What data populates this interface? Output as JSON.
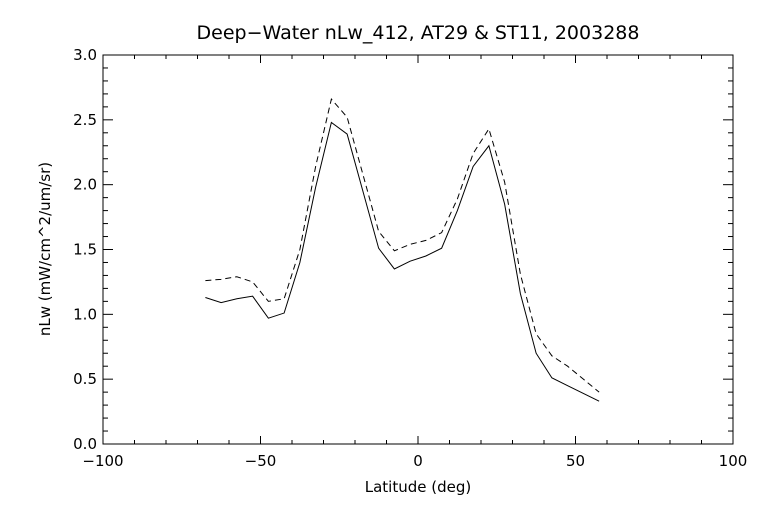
{
  "chart_data": {
    "type": "line",
    "title": "Deep−Water nLw_412, AT29 & ST11, 2003288",
    "xlabel": "Latitude (deg)",
    "ylabel": "nLw (mW/cm^2/um/sr)",
    "xlim": [
      -100,
      100
    ],
    "ylim": [
      0.0,
      3.0
    ],
    "x_ticks": [
      -100,
      -50,
      0,
      50,
      100
    ],
    "x_tick_labels": [
      "−100",
      "−50",
      "0",
      "50",
      "100"
    ],
    "y_ticks": [
      0.0,
      0.5,
      1.0,
      1.5,
      2.0,
      2.5,
      3.0
    ],
    "y_tick_labels": [
      "0.0",
      "0.5",
      "1.0",
      "1.5",
      "2.0",
      "2.5",
      "3.0"
    ],
    "grid": false,
    "legend": "none",
    "series": [
      {
        "style": "solid",
        "points": [
          [
            -67.5,
            1.13
          ],
          [
            -62.5,
            1.09
          ],
          [
            -57.5,
            1.12
          ],
          [
            -52.5,
            1.14
          ],
          [
            -47.5,
            0.97
          ],
          [
            -42.5,
            1.01
          ],
          [
            -37.5,
            1.4
          ],
          [
            -32.5,
            1.98
          ],
          [
            -27.5,
            2.48
          ],
          [
            -22.5,
            2.39
          ],
          [
            -17.5,
            1.95
          ],
          [
            -12.5,
            1.51
          ],
          [
            -7.5,
            1.35
          ],
          [
            -2.5,
            1.41
          ],
          [
            2.5,
            1.45
          ],
          [
            7.5,
            1.51
          ],
          [
            12.5,
            1.8
          ],
          [
            17.5,
            2.14
          ],
          [
            22.5,
            2.3
          ],
          [
            27.5,
            1.85
          ],
          [
            32.5,
            1.16
          ],
          [
            37.5,
            0.7
          ],
          [
            42.5,
            0.51
          ],
          [
            47.5,
            0.45
          ],
          [
            52.5,
            0.39
          ],
          [
            57.5,
            0.33
          ]
        ]
      },
      {
        "style": "dashed",
        "points": [
          [
            -67.5,
            1.26
          ],
          [
            -62.5,
            1.27
          ],
          [
            -57.5,
            1.29
          ],
          [
            -52.5,
            1.25
          ],
          [
            -47.5,
            1.1
          ],
          [
            -42.5,
            1.12
          ],
          [
            -37.5,
            1.5
          ],
          [
            -32.5,
            2.14
          ],
          [
            -27.5,
            2.66
          ],
          [
            -22.5,
            2.52
          ],
          [
            -17.5,
            2.08
          ],
          [
            -12.5,
            1.64
          ],
          [
            -7.5,
            1.49
          ],
          [
            -2.5,
            1.54
          ],
          [
            2.5,
            1.57
          ],
          [
            7.5,
            1.63
          ],
          [
            12.5,
            1.89
          ],
          [
            17.5,
            2.24
          ],
          [
            22.5,
            2.43
          ],
          [
            27.5,
            2.02
          ],
          [
            32.5,
            1.31
          ],
          [
            37.5,
            0.85
          ],
          [
            42.5,
            0.68
          ],
          [
            47.5,
            0.6
          ],
          [
            52.5,
            0.5
          ],
          [
            57.5,
            0.4
          ]
        ]
      }
    ]
  }
}
